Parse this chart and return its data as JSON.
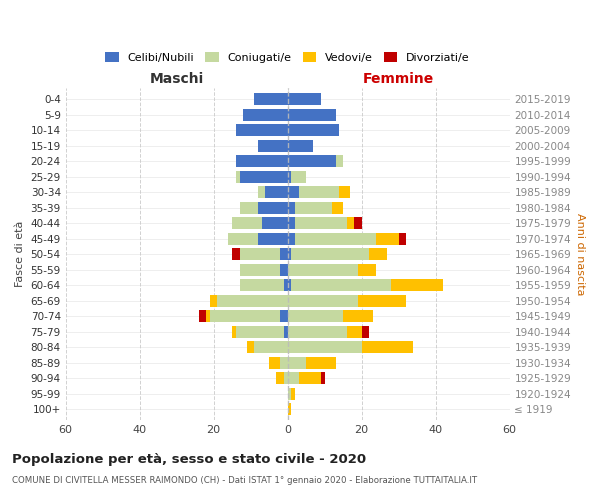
{
  "age_groups": [
    "100+",
    "95-99",
    "90-94",
    "85-89",
    "80-84",
    "75-79",
    "70-74",
    "65-69",
    "60-64",
    "55-59",
    "50-54",
    "45-49",
    "40-44",
    "35-39",
    "30-34",
    "25-29",
    "20-24",
    "15-19",
    "10-14",
    "5-9",
    "0-4"
  ],
  "birth_years": [
    "≤ 1919",
    "1920-1924",
    "1925-1929",
    "1930-1934",
    "1935-1939",
    "1940-1944",
    "1945-1949",
    "1950-1954",
    "1955-1959",
    "1960-1964",
    "1965-1969",
    "1970-1974",
    "1975-1979",
    "1980-1984",
    "1985-1989",
    "1990-1994",
    "1995-1999",
    "2000-2004",
    "2005-2009",
    "2010-2014",
    "2015-2019"
  ],
  "maschi": {
    "celibi": [
      0,
      0,
      0,
      0,
      0,
      1,
      2,
      0,
      1,
      2,
      2,
      8,
      7,
      8,
      6,
      13,
      14,
      8,
      14,
      12,
      9
    ],
    "coniugati": [
      0,
      0,
      1,
      2,
      9,
      13,
      19,
      19,
      12,
      11,
      11,
      8,
      8,
      5,
      2,
      1,
      0,
      0,
      0,
      0,
      0
    ],
    "vedovi": [
      0,
      0,
      2,
      3,
      2,
      1,
      1,
      2,
      0,
      0,
      0,
      0,
      0,
      0,
      0,
      0,
      0,
      0,
      0,
      0,
      0
    ],
    "divorziati": [
      0,
      0,
      0,
      0,
      0,
      0,
      2,
      0,
      0,
      0,
      2,
      0,
      0,
      0,
      0,
      0,
      0,
      0,
      0,
      0,
      0
    ]
  },
  "femmine": {
    "nubili": [
      0,
      0,
      0,
      0,
      0,
      0,
      0,
      0,
      1,
      0,
      1,
      2,
      2,
      2,
      3,
      1,
      13,
      7,
      14,
      13,
      9
    ],
    "coniugate": [
      0,
      1,
      3,
      5,
      20,
      16,
      15,
      19,
      27,
      19,
      21,
      22,
      14,
      10,
      11,
      4,
      2,
      0,
      0,
      0,
      0
    ],
    "vedove": [
      1,
      1,
      6,
      8,
      14,
      4,
      8,
      13,
      14,
      5,
      5,
      6,
      2,
      3,
      3,
      0,
      0,
      0,
      0,
      0,
      0
    ],
    "divorziate": [
      0,
      0,
      1,
      0,
      0,
      2,
      0,
      0,
      0,
      0,
      0,
      2,
      2,
      0,
      0,
      0,
      0,
      0,
      0,
      0,
      0
    ]
  },
  "color_celibi": "#4472c4",
  "color_coniugati": "#c5d9a0",
  "color_vedovi": "#ffc000",
  "color_divorziati": "#c00000",
  "title": "Popolazione per età, sesso e stato civile - 2020",
  "subtitle": "COMUNE DI CIVITELLA MESSER RAIMONDO (CH) - Dati ISTAT 1° gennaio 2020 - Elaborazione TUTTAITALIA.IT",
  "xlabel_left": "Maschi",
  "xlabel_right": "Femmine",
  "ylabel_left": "Fasce di età",
  "ylabel_right": "Anni di nascita",
  "xlim": 60,
  "background_color": "#ffffff",
  "grid_color": "#cccccc",
  "maschi_header_color": "#333333",
  "femmine_header_color": "#cc0000",
  "anni_nascita_color": "#cc6600"
}
